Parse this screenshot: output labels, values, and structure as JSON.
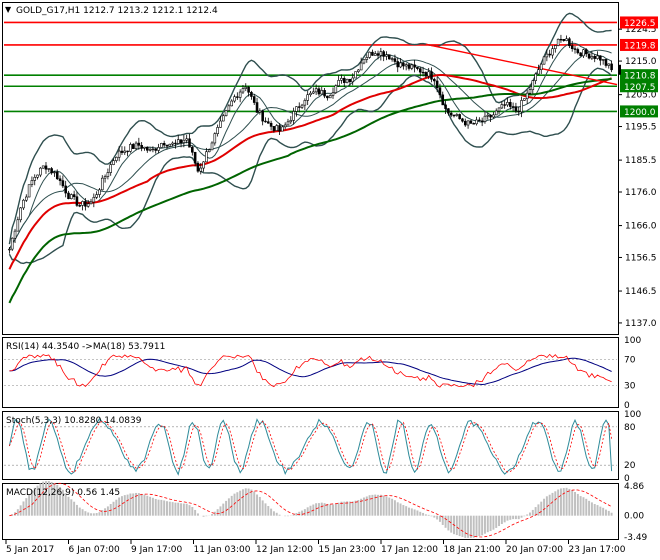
{
  "header": {
    "symbol": "GOLD_G17,H1",
    "ohlc": "1212.7 1213.2 1212.1 1212.4",
    "title": "GOLD_G17,H1  1212.7 1213.2 1212.1 1212.4"
  },
  "colors": {
    "background": "#ffffff",
    "candle": "#000000",
    "ma_fast": "#2f4f4f",
    "ma_red": "#e00000",
    "ma_green": "#006400",
    "bollinger": "#2f4f4f",
    "level_red": "#ff0000",
    "level_green": "#008000",
    "rsi_line": "#ff0000",
    "rsi_ma": "#000080",
    "stoch_main": "#2e8b9a",
    "stoch_signal": "#ff0000",
    "macd_hist": "#c0c0c0",
    "macd_signal": "#ff0000"
  },
  "price_axis": {
    "ticks": [
      "1224.5",
      "1215.0",
      "1205.0",
      "1195.5",
      "1185.5",
      "1176.0",
      "1166.0",
      "1156.5",
      "1146.5",
      "1137.0"
    ],
    "range": [
      1134,
      1232
    ]
  },
  "levels": [
    {
      "label": "1226.5",
      "value": 1226.5,
      "color": "red"
    },
    {
      "label": "1219.8",
      "value": 1219.8,
      "color": "red"
    },
    {
      "label": "1210.8",
      "value": 1210.8,
      "color": "green"
    },
    {
      "label": "1207.5",
      "value": 1207.5,
      "color": "green"
    },
    {
      "label": "1200.0",
      "value": 1200.0,
      "color": "green"
    }
  ],
  "current_price": "1212.4",
  "time_axis": [
    "5 Jan 2017",
    "6 Jan 07:00",
    "9 Jan 17:00",
    "11 Jan 03:00",
    "12 Jan 12:00",
    "15 Jan 23:00",
    "17 Jan 12:00",
    "18 Jan 21:00",
    "20 Jan 07:00",
    "23 Jan 17:00"
  ],
  "rsi": {
    "label": "RSI(14) 44.3540 ->MA(18) 53.7911",
    "ticks": [
      "100",
      "70",
      "30",
      "0"
    ]
  },
  "stoch": {
    "label": "Stoch(5,3,3) 10.8280 14.0839",
    "ticks": [
      "100",
      "80",
      "20",
      "0"
    ]
  },
  "macd": {
    "label": "MACD(12,26,9) 0.56 1.45",
    "ticks": [
      "4.86",
      "0.00",
      "-3.49"
    ]
  },
  "chart_data": {
    "type": "line",
    "title": "GOLD_G17,H1",
    "series": [
      {
        "values": [
          1159,
          1172,
          1180,
          1184,
          1181,
          1175,
          1172,
          1173,
          1180,
          1187,
          1189,
          1190,
          1188,
          1191,
          1190,
          1192,
          1182,
          1190,
          1197,
          1204,
          1208,
          1200,
          1196,
          1194,
          1199,
          1204,
          1206,
          1205,
          1209,
          1210,
          1216,
          1218,
          1217,
          1214,
          1213,
          1212,
          1210,
          1200,
          1198,
          1196,
          1197,
          1199,
          1202,
          1200,
          1206,
          1214,
          1219,
          1222,
          1218,
          1217,
          1216,
          1212.4
        ]
      }
    ],
    "ylim": [
      1134,
      1232
    ]
  }
}
